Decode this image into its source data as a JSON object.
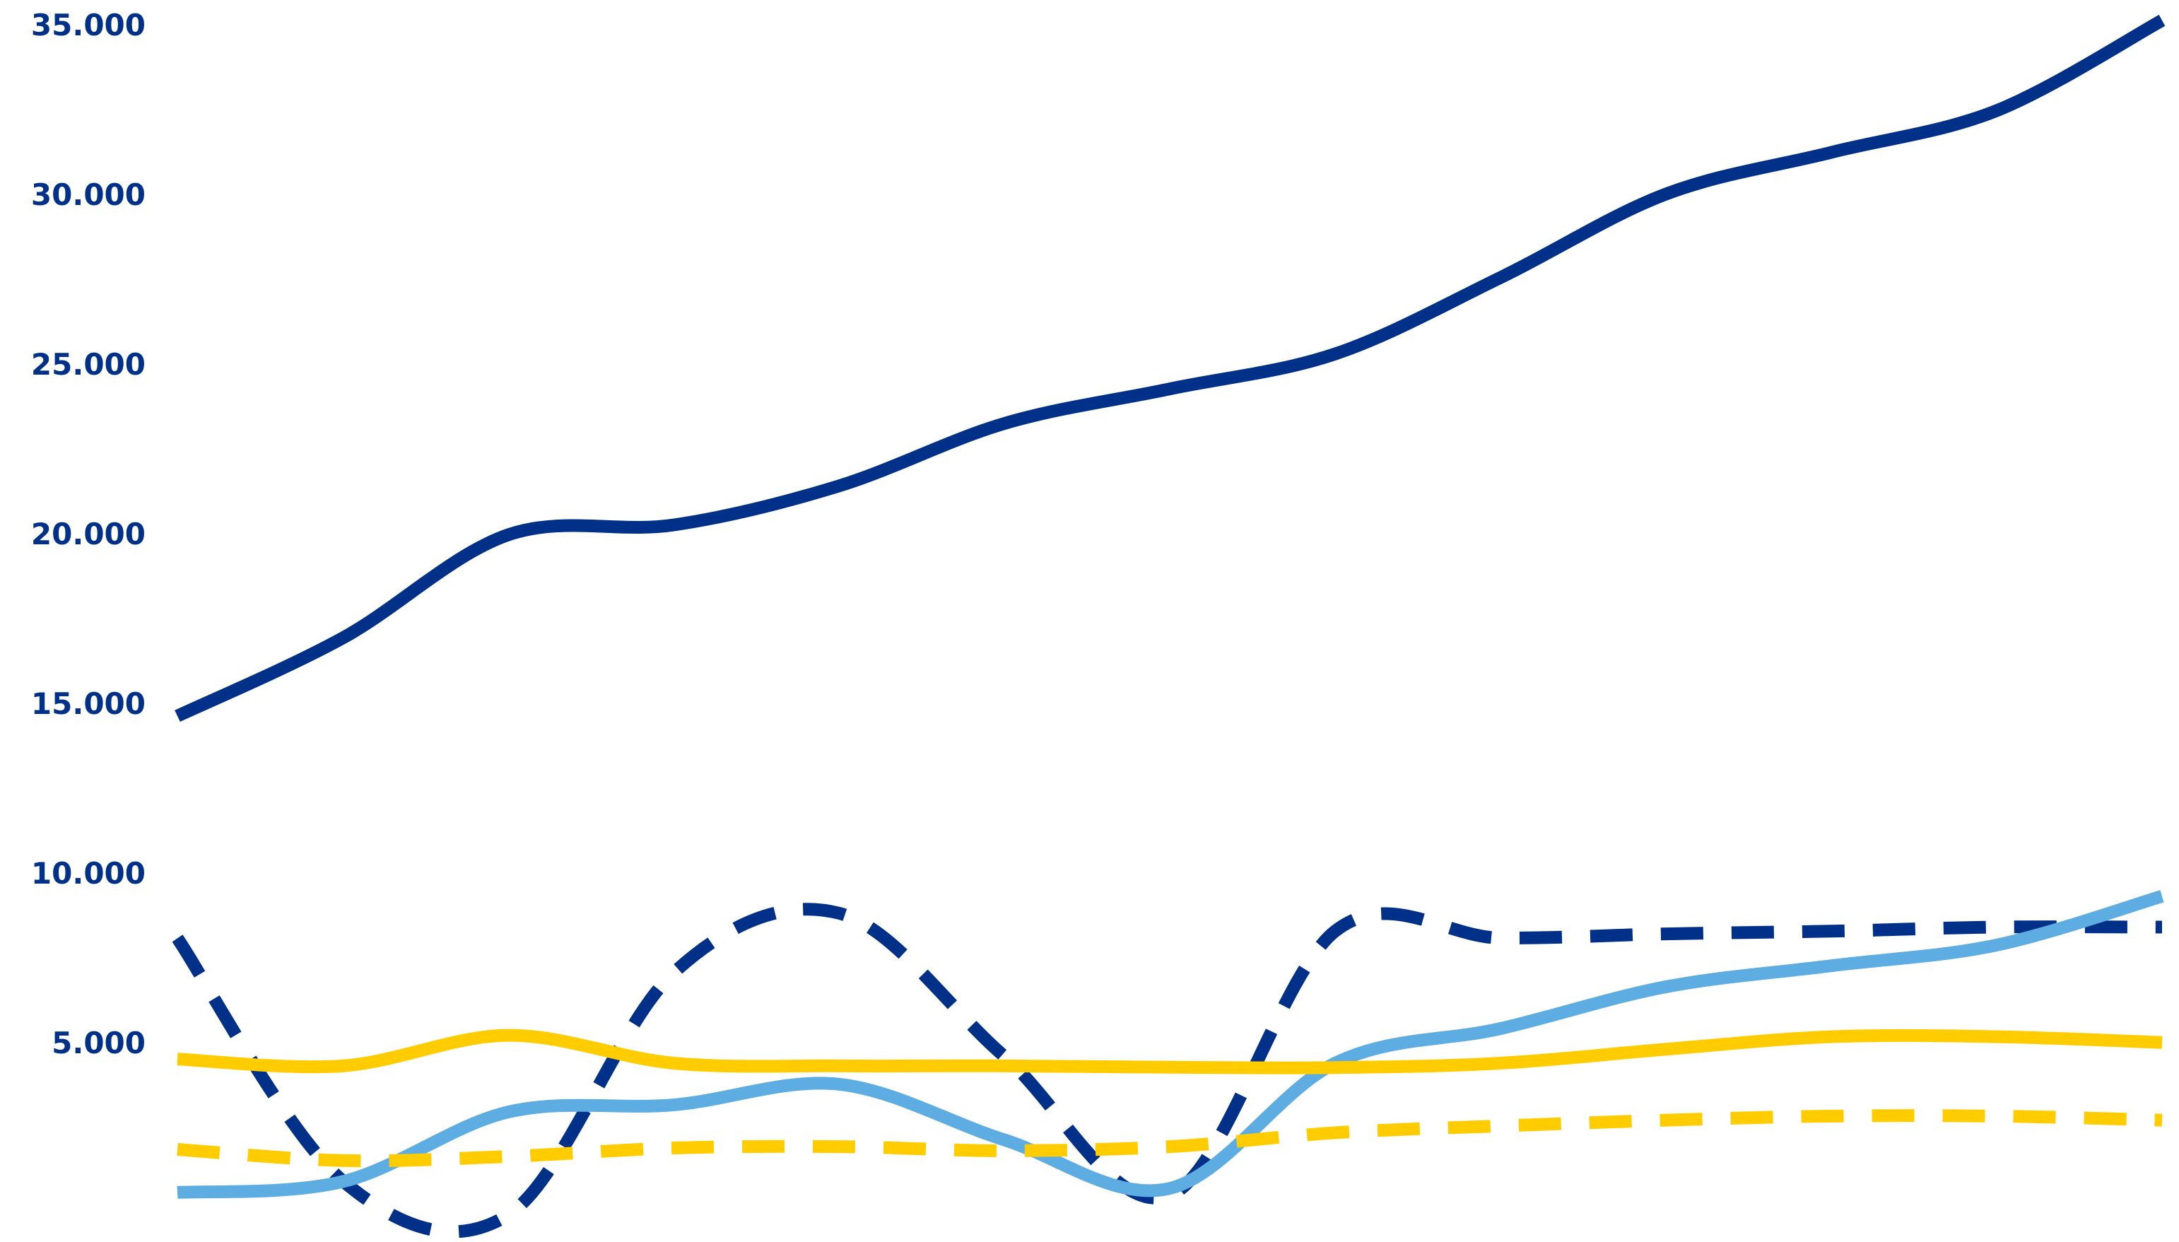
{
  "chart_data": {
    "type": "line",
    "categories": [
      null,
      null,
      null,
      null,
      null,
      null,
      null,
      null,
      null,
      null,
      null,
      null,
      null
    ],
    "ylim": [
      -800,
      35800
    ],
    "yticks": [
      {
        "value": 5000,
        "label": "5.000"
      },
      {
        "value": 10000,
        "label": "10.000"
      },
      {
        "value": 15000,
        "label": "15.000"
      },
      {
        "value": 20000,
        "label": "20.000"
      },
      {
        "value": 25000,
        "label": "25.000"
      },
      {
        "value": 30000,
        "label": "30.000"
      },
      {
        "value": 35000,
        "label": "35.000"
      }
    ],
    "grid": false,
    "series": [
      {
        "color": "#003087",
        "dashed": false,
        "values": [
          14700,
          17000,
          20040,
          20330,
          21480,
          23320,
          24340,
          25370,
          27620,
          30080,
          31310,
          32540,
          35200
        ]
      },
      {
        "color": "#003087",
        "dashed": true,
        "values": [
          8150,
          1000,
          0,
          7130,
          8890,
          4670,
          570,
          8360,
          8160,
          8280,
          8360,
          8480,
          8480
        ]
      },
      {
        "color": "#5dade2",
        "dashed": false,
        "values": [
          660,
          980,
          3030,
          3240,
          3850,
          2210,
          780,
          4470,
          5490,
          6720,
          7340,
          7950,
          9390
        ]
      },
      {
        "color": "#ffcc00",
        "dashed": false,
        "values": [
          4590,
          4390,
          5290,
          4470,
          4390,
          4390,
          4350,
          4340,
          4470,
          4880,
          5250,
          5250,
          5080
        ]
      },
      {
        "color": "#ffcc00",
        "dashed": true,
        "values": [
          1930,
          1600,
          1720,
          1970,
          2010,
          1890,
          2010,
          2420,
          2620,
          2790,
          2910,
          2910,
          2790
        ]
      }
    ]
  }
}
